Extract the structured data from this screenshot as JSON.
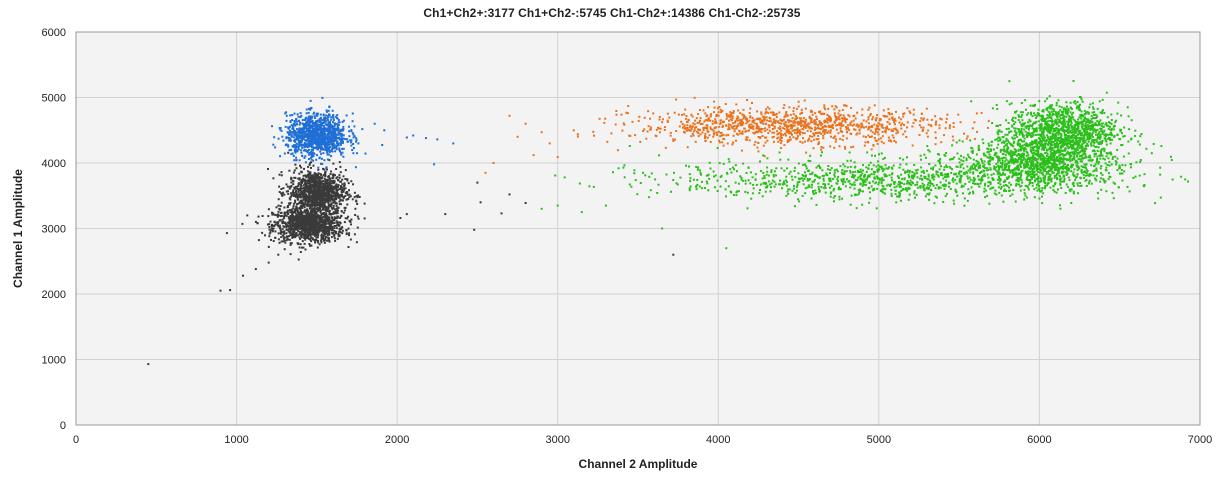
{
  "chart_data": {
    "type": "scatter",
    "title": "Ch1+Ch2+:3177  Ch1+Ch2-:5745  Ch1-Ch2+:14386  Ch1-Ch2-:25735",
    "xlabel": "Channel 2 Amplitude",
    "ylabel": "Channel 1 Amplitude",
    "xlim": [
      0,
      7000
    ],
    "ylim": [
      0,
      6000
    ],
    "xticks": [
      0,
      1000,
      2000,
      3000,
      4000,
      5000,
      6000,
      7000
    ],
    "yticks": [
      0,
      1000,
      2000,
      3000,
      4000,
      5000,
      6000
    ],
    "grid": true,
    "plot_background": "#f3f3f3",
    "series": [
      {
        "name": "Ch1-Ch2-",
        "color": "#3a3a3a",
        "count": 25735,
        "clusters": [
          {
            "center": [
              1450,
              3050
            ],
            "spread": [
              110,
              130
            ]
          },
          {
            "center": [
              1500,
              3550
            ],
            "spread": [
              90,
              170
            ]
          }
        ],
        "outliers": [
          [
            450,
            930
          ],
          [
            900,
            2050
          ],
          [
            960,
            2060
          ],
          [
            1040,
            2280
          ],
          [
            1120,
            2380
          ],
          [
            1200,
            2480
          ],
          [
            1260,
            2600
          ],
          [
            940,
            2930
          ],
          [
            2020,
            3160
          ],
          [
            2060,
            3220
          ],
          [
            2300,
            3220
          ],
          [
            2480,
            2980
          ],
          [
            2500,
            3700
          ],
          [
            2520,
            3400
          ],
          [
            2700,
            3520
          ],
          [
            2800,
            3390
          ],
          [
            2650,
            3230
          ],
          [
            3720,
            2600
          ],
          [
            1740,
            3300
          ],
          [
            1760,
            3150
          ],
          [
            1700,
            2900
          ]
        ]
      },
      {
        "name": "Ch1+Ch2-",
        "color": "#1f6fd6",
        "count": 5745,
        "clusters": [
          {
            "center": [
              1500,
              4420
            ],
            "spread": [
              95,
              160
            ]
          }
        ],
        "outliers": [
          [
            1860,
            4600
          ],
          [
            1920,
            4500
          ],
          [
            2060,
            4390
          ],
          [
            2100,
            4420
          ],
          [
            2180,
            4380
          ],
          [
            2250,
            4360
          ],
          [
            2350,
            4300
          ],
          [
            2230,
            3980
          ],
          [
            1750,
            4150
          ]
        ]
      },
      {
        "name": "Ch1+Ch2+",
        "color": "#e8731e",
        "count": 3177,
        "clusters": [
          {
            "center": [
              4450,
              4570
            ],
            "spread": [
              480,
              140
            ]
          }
        ],
        "outliers": [
          [
            2700,
            4720
          ],
          [
            2800,
            4600
          ],
          [
            2900,
            4470
          ],
          [
            2950,
            4300
          ],
          [
            3000,
            4090
          ],
          [
            2550,
            3850
          ],
          [
            2600,
            4000
          ],
          [
            3100,
            4500
          ],
          [
            2750,
            4400
          ],
          [
            2850,
            4120
          ]
        ]
      },
      {
        "name": "Ch1-Ch2+",
        "color": "#2bbf1a",
        "count": 14386,
        "clusters": [
          {
            "center": [
              6000,
              4030
            ],
            "spread": [
              230,
              190
            ]
          },
          {
            "center": [
              5100,
              3750
            ],
            "spread": [
              700,
              160
            ]
          },
          {
            "center": [
              6150,
              4500
            ],
            "spread": [
              170,
              210
            ]
          }
        ],
        "outliers": [
          [
            3650,
            3000
          ],
          [
            4050,
            2700
          ],
          [
            3300,
            3350
          ],
          [
            3150,
            3250
          ],
          [
            3000,
            3350
          ],
          [
            2900,
            3300
          ],
          [
            6550,
            4850
          ],
          [
            6700,
            4150
          ],
          [
            6500,
            3950
          ]
        ]
      }
    ]
  }
}
